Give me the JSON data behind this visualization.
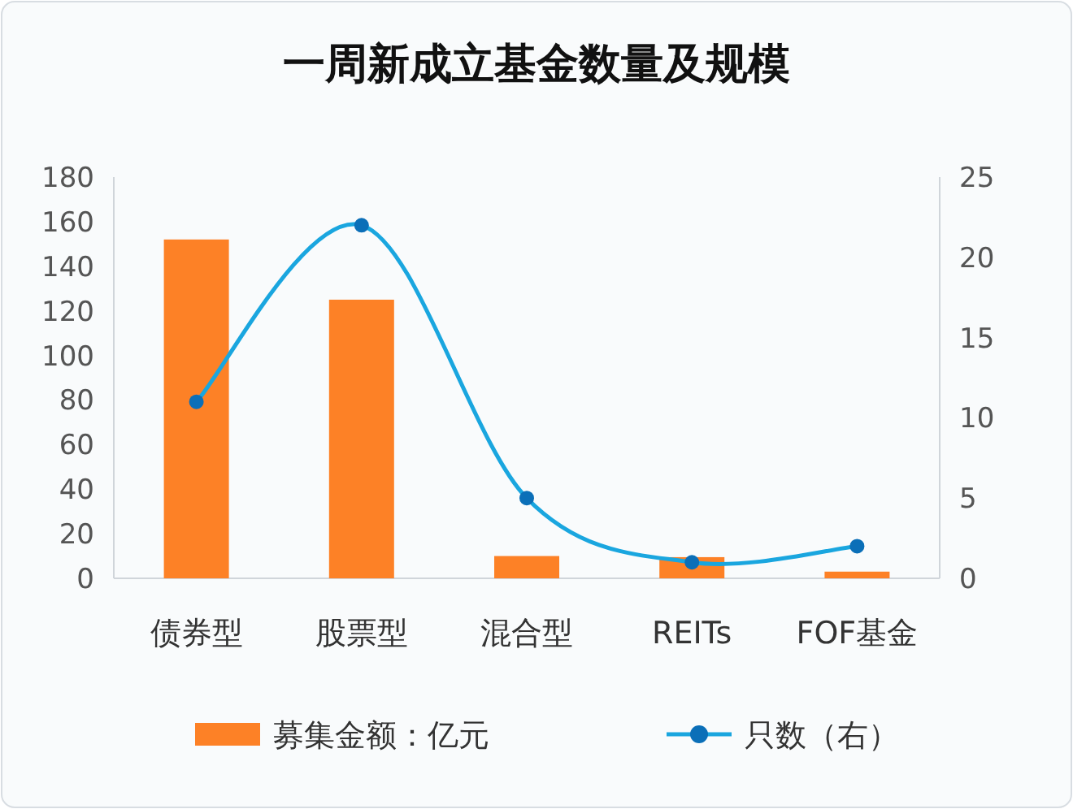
{
  "chart_data": {
    "type": "bar",
    "title": "一周新成立基金数量及规模",
    "categories": [
      "债券型",
      "股票型",
      "混合型",
      "REITs",
      "FOF基金"
    ],
    "series": [
      {
        "name": "募集金额：亿元",
        "color": "#fd8126",
        "values": [
          152,
          125,
          10,
          9.5,
          3
        ]
      },
      {
        "name": "只数（右）",
        "type": "line",
        "axis": "y2",
        "color": "#1aa6df",
        "marker": "circle",
        "values": [
          11,
          22,
          5,
          1,
          2
        ]
      }
    ],
    "ylim": [
      0,
      180
    ],
    "yticks": [
      0,
      20,
      40,
      60,
      80,
      100,
      120,
      140,
      160,
      180
    ],
    "y2lim": [
      0,
      25
    ],
    "y2ticks": [
      0,
      5,
      10,
      15,
      20,
      25
    ],
    "grid": false,
    "legend": "bottom"
  }
}
